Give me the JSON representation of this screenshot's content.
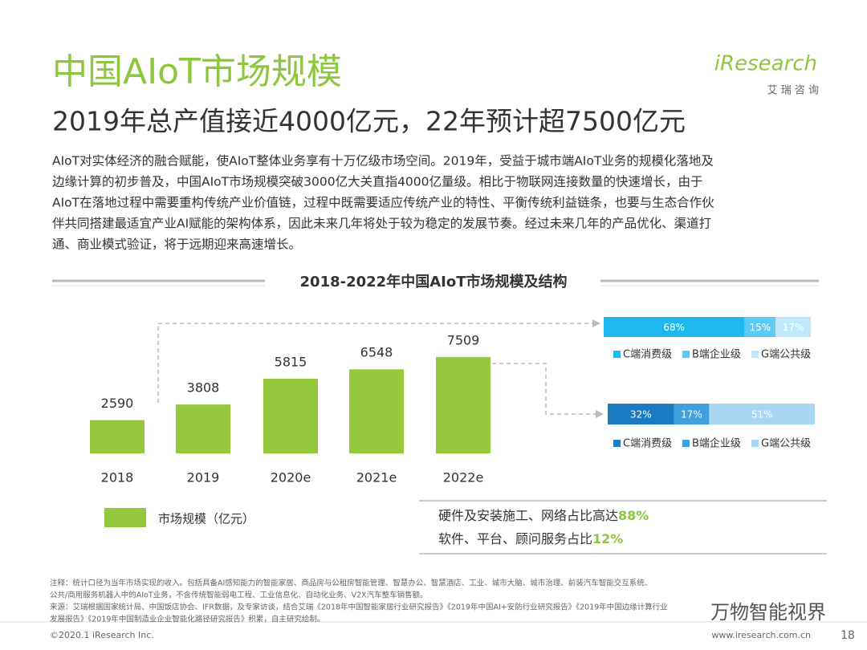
{
  "header": {
    "title": "中国AIoT市场规模",
    "subtitle": "2019年总产值接近4000亿元，22年预计超7500亿元",
    "logo": "iResearch",
    "logo_sub": "艾 瑞 咨 询"
  },
  "body": [
    "AIoT对实体经济的融合赋能，使AIoT整体业务享有十万亿级市场空间。2019年，受益于城市端AIoT业务的规模化落地及",
    "边缘计算的初步普及，中国AIoT市场规模突破3000亿大关直指4000亿量级。相比于物联网连接数量的快速增长，由于",
    "AIoT在落地过程中需要重构传统产业价值链，过程中既需要适应传统产业的特性、平衡传统利益链条，也要与生态合作伙",
    "伴共同搭建最适宜产业AI赋能的架构体系，因此未来几年将处于较为稳定的发展节奏。经过未来几年的产品优化、渠道打",
    "通、商业模式验证，将于远期迎来高速增长。"
  ],
  "chart_data": [
    {
      "type": "bar",
      "title": "2018-2022年中国AIoT市场规模及结构",
      "categories": [
        "2018",
        "2019",
        "2020e",
        "2021e",
        "2022e"
      ],
      "series": [
        {
          "name": "市场规模（亿元）",
          "color": "#95c83d",
          "values": [
            2590,
            3808,
            5815,
            6548,
            7509
          ]
        }
      ]
    },
    {
      "type": "stacked-bar",
      "series": [
        {
          "name": "C端消费级",
          "color": "#1fb8ee",
          "values": [
            68
          ],
          "value_labels": [
            "68%"
          ]
        },
        {
          "name": "B端企业级",
          "color": "#5ccaf3",
          "values": [
            15
          ],
          "value_labels": [
            "15%"
          ]
        },
        {
          "name": "G端公共级",
          "color": "#bfe8fa",
          "values": [
            17
          ],
          "value_labels": [
            "17%"
          ]
        }
      ]
    },
    {
      "type": "stacked-bar",
      "series": [
        {
          "name": "C端消费级",
          "color": "#1a7dc4",
          "values": [
            32
          ],
          "value_labels": [
            "32%"
          ]
        },
        {
          "name": "B端企业级",
          "color": "#3fa0db",
          "values": [
            17
          ],
          "value_labels": [
            "17%"
          ]
        },
        {
          "name": "G端公共级",
          "color": "#a9d6f2",
          "values": [
            51
          ],
          "value_labels": [
            "51%"
          ]
        }
      ]
    }
  ],
  "annotations": [
    {
      "text": "硬件及安装施工、网络占比高达",
      "highlight": "88%"
    },
    {
      "text": "软件、平台、顾问服务占比",
      "highlight": "12%"
    }
  ],
  "notes": [
    "注释：统计口径为当年市场实现的收入。包括具备AI感知能力的智能家居、商品房与公租房智能管理、智慧办公、智慧酒店、工业、城市大脑、城市治理、前装汽车智能交互系统、",
    "公共/商用服务机器人中的AIoT业务，不含传统智能弱电工程、工业信息化、自动化业务、V2X汽车整车销售额。",
    "来源：艾瑞根据国家统计局、中国饭店协会、IFR数据，及专家访谈，结合艾瑞《2018年中国智能家居行业研究报告》《2019年中国AI+安防行业研究报告》《2019年中国边缘计算行业",
    "发展报告》《2019年中国制造业企业智能化路径研究报告》积累，自主研究绘制。"
  ],
  "footer": {
    "copyright": "©2020.1 iResearch Inc.",
    "url": "www.iresearch.com.cn",
    "page": "18",
    "watermark": "万物智能视界"
  }
}
